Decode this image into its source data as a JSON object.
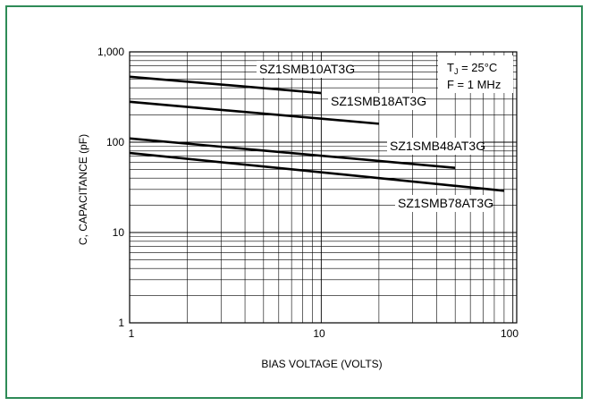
{
  "chart_data": {
    "type": "line",
    "xscale": "log",
    "yscale": "log",
    "xlabel": "BIAS VOLTAGE (VOLTS)",
    "ylabel": "C, CAPACITANCE (pF)",
    "xlim": [
      1,
      100
    ],
    "ylim": [
      1,
      1000
    ],
    "x_tick_labels": [
      "1",
      "10",
      "100"
    ],
    "y_tick_labels": [
      "1",
      "10",
      "100",
      "1,000"
    ],
    "grid": true,
    "conditions": {
      "tj": "T",
      "tj_sub": "J",
      "tj_value": " = 25°C",
      "freq": "F = 1 MHz"
    },
    "legend_position": "top-right",
    "series": [
      {
        "name": "SZ1SMB10AT3G",
        "x": [
          1,
          10
        ],
        "y": [
          530,
          350
        ]
      },
      {
        "name": "SZ1SMB18AT3G",
        "x": [
          1,
          20
        ],
        "y": [
          280,
          160
        ]
      },
      {
        "name": "SZ1SMB48AT3G",
        "x": [
          1,
          50
        ],
        "y": [
          110,
          52
        ]
      },
      {
        "name": "SZ1SMB78AT3G",
        "x": [
          1,
          90
        ],
        "y": [
          76,
          29
        ]
      }
    ]
  },
  "colors": {
    "frame": "#2e8b57",
    "line": "#000000",
    "grid": "#000000"
  }
}
